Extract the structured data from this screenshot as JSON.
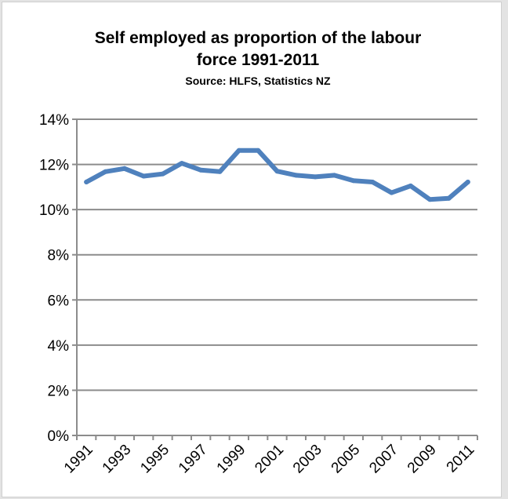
{
  "chart_data": {
    "type": "line",
    "title_line1": "Self employed as proportion of the labour",
    "title_line2": "force 1991-2011",
    "subtitle": "Source: HLFS, Statistics NZ",
    "xlabel": "",
    "ylabel": "",
    "ylim": [
      0,
      0.14
    ],
    "yticks": [
      "0%",
      "2%",
      "4%",
      "6%",
      "8%",
      "10%",
      "12%",
      "14%"
    ],
    "xticks": [
      "1991",
      "1993",
      "1995",
      "1997",
      "1999",
      "2001",
      "2003",
      "2005",
      "2007",
      "2009",
      "2011"
    ],
    "grid": true,
    "x": [
      1991,
      1992,
      1993,
      1994,
      1995,
      1996,
      1997,
      1998,
      1999,
      2000,
      2001,
      2002,
      2003,
      2004,
      2005,
      2006,
      2007,
      2008,
      2009,
      2010,
      2011
    ],
    "series": [
      {
        "values": [
          0.1122,
          0.1168,
          0.1182,
          0.1148,
          0.1158,
          0.1205,
          0.1175,
          0.1168,
          0.1262,
          0.1262,
          0.117,
          0.1152,
          0.1145,
          0.1152,
          0.1128,
          0.1122,
          0.1075,
          0.1105,
          0.1045,
          0.105,
          0.1122
        ]
      }
    ],
    "line_color": "#4f81bd",
    "grid_color": "#8c8c8c"
  }
}
